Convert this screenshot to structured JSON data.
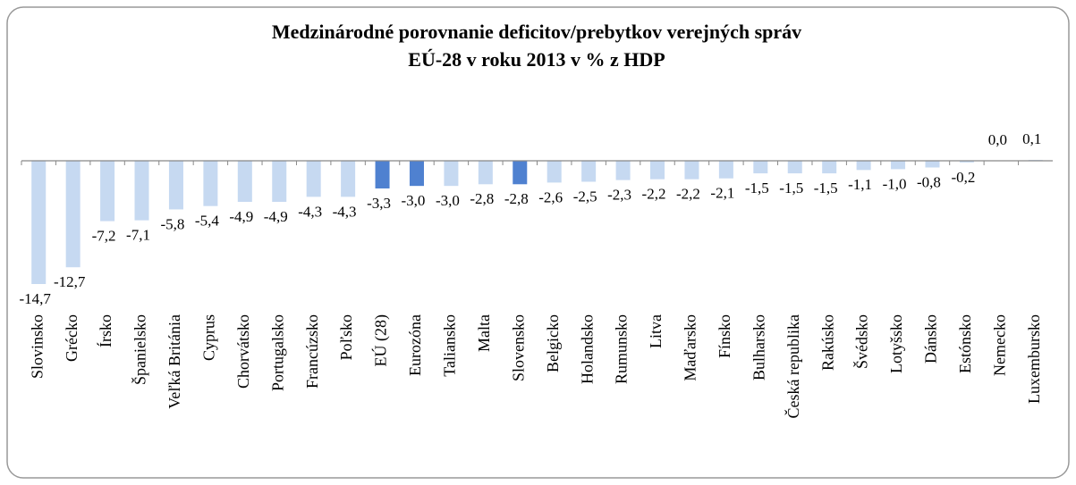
{
  "chart_data": {
    "type": "bar",
    "title": [
      "Medzinárodné porovnanie deficitov/prebytkov verejných správ",
      "EÚ-28 v roku 2013 v % z  HDP"
    ],
    "categories": [
      "Slovinsko",
      "Grécko",
      "Írsko",
      "Španielsko",
      "Veľká Británia",
      "Cyprus",
      "Chorvátsko",
      "Portugalsko",
      "Francúzsko",
      "Poľsko",
      "EÚ (28)",
      "Eurozóna",
      "Taliansko",
      "Malta",
      "Slovensko",
      "Belgicko",
      "Holandsko",
      "Rumunsko",
      "Litva",
      "Maďarsko",
      "Fínsko",
      "Bulharsko",
      "Česká republika",
      "Rakúsko",
      "Švédsko",
      "Lotyšsko",
      "Dánsko",
      "Estónsko",
      "Nemecko",
      "Luxembursko"
    ],
    "values": [
      -14.7,
      -12.7,
      -7.2,
      -7.1,
      -5.8,
      -5.4,
      -4.9,
      -4.9,
      -4.3,
      -4.3,
      -3.3,
      -3.0,
      -3.0,
      -2.8,
      -2.8,
      -2.6,
      -2.5,
      -2.3,
      -2.2,
      -2.2,
      -2.1,
      -1.5,
      -1.5,
      -1.5,
      -1.1,
      -1.0,
      -0.8,
      -0.2,
      0.0,
      0.1
    ],
    "value_labels": [
      "-14,7",
      "-12,7",
      "-7,2",
      "-7,1",
      "-5,8",
      "-5,4",
      "-4,9",
      "-4,9",
      "-4,3",
      "-4,3",
      "-3,3",
      "-3,0",
      "-3,0",
      "-2,8",
      "-2,8",
      "-2,6",
      "-2,5",
      "-2,3",
      "-2,2",
      "-2,2",
      "-2,1",
      "-1,5",
      "-1,5",
      "-1,5",
      "-1,1",
      "-1,0",
      "-0,8",
      "-0,2",
      "0,0",
      "0,1"
    ],
    "colors": [
      "#c6d9f1",
      "#c6d9f1",
      "#c6d9f1",
      "#c6d9f1",
      "#c6d9f1",
      "#c6d9f1",
      "#c6d9f1",
      "#c6d9f1",
      "#c6d9f1",
      "#c6d9f1",
      "#4f81d0",
      "#4f81d0",
      "#c6d9f1",
      "#c6d9f1",
      "#4f81d0",
      "#c6d9f1",
      "#c6d9f1",
      "#c6d9f1",
      "#c6d9f1",
      "#c6d9f1",
      "#c6d9f1",
      "#c6d9f1",
      "#c6d9f1",
      "#c6d9f1",
      "#c6d9f1",
      "#c6d9f1",
      "#c6d9f1",
      "#c6d9f1",
      "#c6d9f1",
      "#c6d9f1"
    ]
  }
}
